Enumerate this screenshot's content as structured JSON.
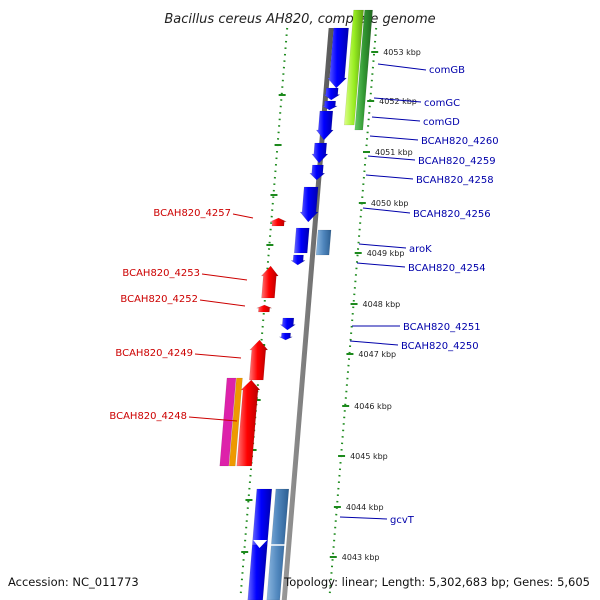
{
  "title": "Bacillus cereus AH820, complete genome",
  "accession": "Accession: NC_011773",
  "topology": "Topology: linear; Length: 5,302,683 bp; Genes: 5,605",
  "colors": {
    "axis": "#7a7a7a",
    "dots": "#1d8a1d",
    "forward": "#0000ff",
    "reverse": "#ff0000",
    "forward_label": "#0000aa",
    "reverse_label": "#cc0000",
    "steelblue": "#5a8fc4",
    "lime": "#99ee22",
    "green": "#339933",
    "magenta": "#dd22aa",
    "orange": "#ee9900"
  },
  "scale_labels": [
    "4053 kbp",
    "4052 kbp",
    "4051 kbp",
    "4050 kbp",
    "4049 kbp",
    "4048 kbp",
    "4047 kbp",
    "4046 kbp",
    "4045 kbp",
    "4044 kbp",
    "4043 kbp"
  ],
  "forward_genes": [
    "comGB",
    "comGC",
    "comGD",
    "BCAH820_4260",
    "BCAH820_4259",
    "BCAH820_4258",
    "BCAH820_4256",
    "aroK",
    "BCAH820_4254",
    "BCAH820_4251",
    "BCAH820_4250",
    "gcvT"
  ],
  "reverse_genes": [
    "BCAH820_4257",
    "BCAH820_4253",
    "BCAH820_4252",
    "BCAH820_4249",
    "BCAH820_4248"
  ]
}
